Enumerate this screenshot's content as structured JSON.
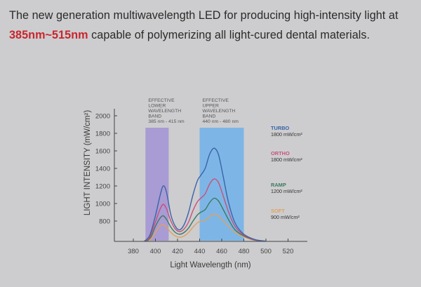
{
  "headline": {
    "line1": "The new generation multiwavelength LED for producing high-intensity light at",
    "highlight": "385nm~515nm",
    "line2_rest": " capable of polymerizing all light-cured dental materials.",
    "highlight_color": "#c8262d"
  },
  "chart_data": {
    "type": "line",
    "title": "",
    "xlabel": "Light Wavelength  (nm)",
    "ylabel": "LIGHT INTENSITY (mW/cm²)",
    "xlim": [
      365,
      525
    ],
    "ylim": [
      570,
      2100
    ],
    "x_ticks": [
      380,
      400,
      420,
      440,
      460,
      480,
      500,
      520
    ],
    "y_ticks": [
      800,
      1000,
      1200,
      1400,
      1600,
      1800,
      2000
    ],
    "grid": false,
    "bands": [
      {
        "name": "lower",
        "label_lines": [
          "EFFECTIVE",
          "LOWER",
          "WAVELENGTH",
          "BAND",
          "385 nm - 415 nm"
        ],
        "x_start": 391,
        "x_end": 412,
        "color": "#a99bd3"
      },
      {
        "name": "upper",
        "label_lines": [
          "EFFECTIVE",
          "UPPER",
          "WAVELENGTH",
          "BAND",
          "440 nm - 480 nm"
        ],
        "x_start": 440,
        "x_end": 480,
        "color": "#7db6e6"
      }
    ],
    "legend_placement": "right",
    "series": [
      {
        "name": "TURBO",
        "value_label": "1800 mW/cm²",
        "color": "#3b63a8",
        "x": [
          390,
          395,
          400,
          404,
          407,
          410,
          414,
          418,
          422,
          426,
          430,
          434,
          438,
          441,
          445,
          449,
          453,
          457,
          461,
          466,
          472,
          480,
          490,
          500
        ],
        "y": [
          570,
          640,
          860,
          1080,
          1200,
          1130,
          870,
          740,
          700,
          760,
          900,
          1100,
          1260,
          1320,
          1400,
          1560,
          1630,
          1560,
          1330,
          1020,
          780,
          650,
          590,
          570
        ]
      },
      {
        "name": "ORTHO",
        "value_label": "1800 mW/cm²",
        "color": "#c9507c",
        "x": [
          391,
          395,
          400,
          404,
          407,
          410,
          414,
          418,
          422,
          426,
          430,
          434,
          438,
          441,
          445,
          449,
          453,
          457,
          461,
          466,
          472,
          480,
          490,
          500
        ],
        "y": [
          570,
          620,
          790,
          930,
          990,
          940,
          800,
          710,
          680,
          710,
          790,
          920,
          1020,
          1060,
          1110,
          1220,
          1280,
          1240,
          1100,
          910,
          740,
          640,
          585,
          570
        ]
      },
      {
        "name": "RAMP",
        "value_label": "1200 mW/cm²",
        "color": "#3a7a5e",
        "x": [
          392,
          396,
          400,
          404,
          407,
          410,
          414,
          418,
          422,
          426,
          430,
          434,
          438,
          441,
          445,
          449,
          453,
          457,
          461,
          466,
          472,
          480,
          490,
          500
        ],
        "y": [
          570,
          620,
          740,
          830,
          860,
          820,
          730,
          670,
          650,
          670,
          720,
          800,
          870,
          900,
          930,
          1010,
          1060,
          1030,
          940,
          820,
          700,
          630,
          582,
          570
        ]
      },
      {
        "name": "SOFT",
        "value_label": "900 mW/cm²",
        "color": "#e0a060",
        "x": [
          393,
          397,
          401,
          404,
          407,
          410,
          414,
          418,
          422,
          426,
          430,
          434,
          438,
          441,
          445,
          449,
          453,
          457,
          461,
          466,
          472,
          480,
          490,
          500
        ],
        "y": [
          570,
          610,
          690,
          740,
          760,
          730,
          670,
          630,
          615,
          630,
          670,
          730,
          780,
          800,
          810,
          850,
          880,
          860,
          810,
          740,
          670,
          620,
          580,
          570
        ]
      }
    ]
  }
}
